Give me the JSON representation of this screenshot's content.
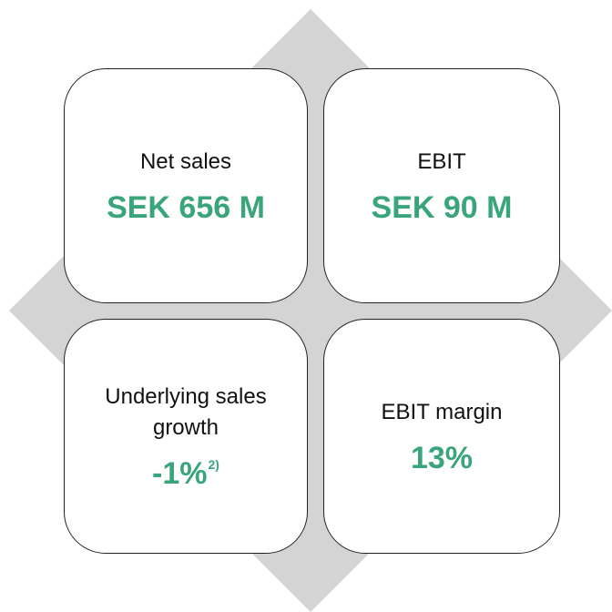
{
  "cards": [
    {
      "label": "Net sales",
      "value": "SEK 656 M"
    },
    {
      "label": "EBIT",
      "value": "SEK 90 M"
    },
    {
      "label": "Underlying sales growth",
      "value": "-1%",
      "footnote": "2)"
    },
    {
      "label": "EBIT margin",
      "value": "13%"
    }
  ]
}
